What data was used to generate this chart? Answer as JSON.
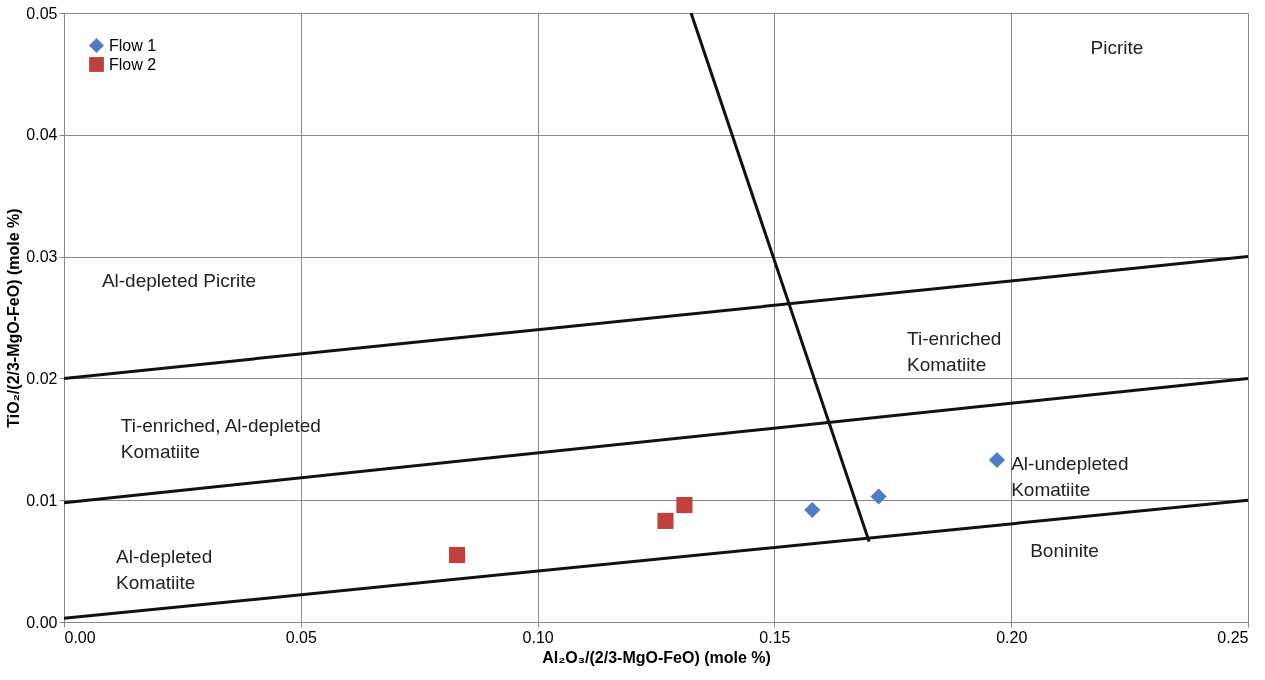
{
  "chart_data": {
    "type": "scatter",
    "xlabel": "Al₂O₃/(2/3-MgO-FeO)  (mole %)",
    "ylabel": "TiO₂/(2/3-MgO-FeO) (mole %)",
    "xlim": [
      0,
      0.25
    ],
    "ylim": [
      0,
      0.05
    ],
    "xticks": [
      {
        "value": 0,
        "label": "0.00"
      },
      {
        "value": 0.05,
        "label": "0.05"
      },
      {
        "value": 0.1,
        "label": "0.10"
      },
      {
        "value": 0.15,
        "label": "0.15"
      },
      {
        "value": 0.2,
        "label": "0.20"
      },
      {
        "value": 0.25,
        "label": "0.25"
      }
    ],
    "yticks": [
      {
        "value": 0,
        "label": "0.00"
      },
      {
        "value": 0.01,
        "label": "0.01"
      },
      {
        "value": 0.02,
        "label": "0.02"
      },
      {
        "value": 0.03,
        "label": "0.03"
      },
      {
        "value": 0.04,
        "label": "0.04"
      },
      {
        "value": 0.05,
        "label": "0.05"
      }
    ],
    "grid": true,
    "legend": "top left",
    "series": [
      {
        "name": "Flow 1",
        "type": "scatter",
        "marker": "diamond",
        "color": "#4f7cc3",
        "x": [
          0.158,
          0.172,
          0.197
        ],
        "values": [
          0.0092,
          0.0103,
          0.0133
        ]
      },
      {
        "name": "Flow 2",
        "type": "scatter",
        "marker": "square",
        "color": "#c0403e",
        "x": [
          0.083,
          0.127,
          0.131
        ],
        "values": [
          0.0055,
          0.0083,
          0.0096
        ]
      },
      {
        "type": "line",
        "color": "#111111",
        "x": [
          0,
          0.25
        ],
        "values": [
          0.0003,
          0.01
        ]
      },
      {
        "type": "line",
        "color": "#111111",
        "x": [
          0,
          0.25
        ],
        "values": [
          0.0098,
          0.02
        ]
      },
      {
        "type": "line",
        "color": "#111111",
        "x": [
          0,
          0.25
        ],
        "values": [
          0.02,
          0.03
        ]
      },
      {
        "type": "line",
        "color": "#111111",
        "x": [
          0.1324,
          0.17
        ],
        "values": [
          0.05,
          0.0066
        ]
      }
    ],
    "annotations": [
      "Picrite",
      "Al-depleted Picrite",
      "Ti-enriched\nKomatiite",
      "Ti-enriched, Al-depleted\nKomatiite",
      "Al-undepleted\nKomatiite",
      "Al-depleted\nKomatiite",
      "Boninite"
    ]
  }
}
